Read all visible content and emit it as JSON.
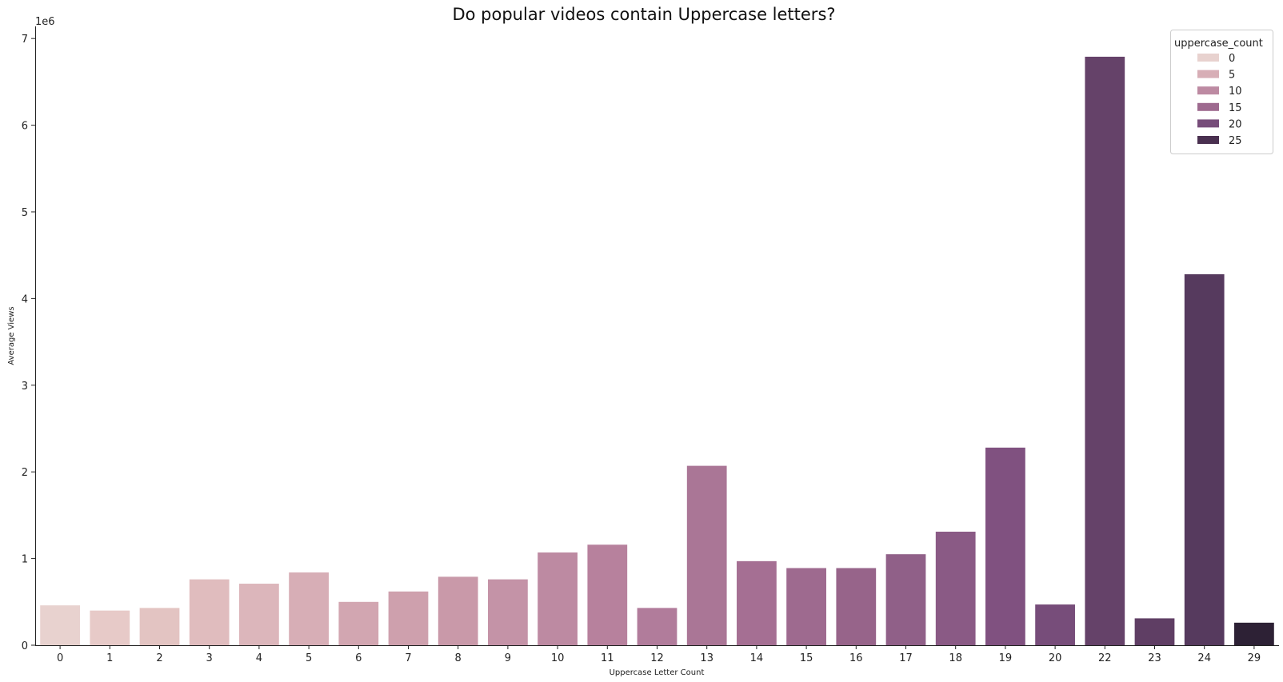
{
  "chart_data": {
    "type": "bar",
    "title": "Do popular videos contain Uppercase letters?",
    "xlabel": "Uppercase Letter Count",
    "ylabel": "Average Views",
    "y_offset_label": "1e6",
    "ylim": [
      0,
      7.14
    ],
    "yticks": [
      "0",
      "1",
      "2",
      "3",
      "4",
      "5",
      "6",
      "7"
    ],
    "ytick_values": [
      0,
      1,
      2,
      3,
      4,
      5,
      6,
      7
    ],
    "categories": [
      "0",
      "1",
      "2",
      "3",
      "4",
      "5",
      "6",
      "7",
      "8",
      "9",
      "10",
      "11",
      "12",
      "13",
      "14",
      "15",
      "16",
      "17",
      "18",
      "19",
      "20",
      "22",
      "23",
      "24",
      "29"
    ],
    "values": [
      0.46,
      0.4,
      0.43,
      0.76,
      0.71,
      0.84,
      0.5,
      0.62,
      0.79,
      0.76,
      1.07,
      1.16,
      0.43,
      2.07,
      0.97,
      0.89,
      0.89,
      1.05,
      1.31,
      2.28,
      0.47,
      6.79,
      0.31,
      4.28,
      0.26
    ],
    "colors": [
      "#e8d2cf",
      "#e7cac8",
      "#e3c4c2",
      "#e0bcbe",
      "#dcb6bb",
      "#d7aeb6",
      "#d2a6b1",
      "#cea0ad",
      "#c999a9",
      "#c493a7",
      "#bd8aa2",
      "#b7819d",
      "#b17c9b",
      "#aa7696",
      "#a56f93",
      "#9e6a8f",
      "#97648a",
      "#906088",
      "#8a5a85",
      "#805180",
      "#774d7a",
      "#654269",
      "#5f3e64",
      "#563a5e",
      "#2d2135"
    ],
    "grid": false,
    "legend": {
      "title": "uppercase_count",
      "position": "top-right",
      "entries": [
        {
          "label": "0",
          "color": "#e8d2cf"
        },
        {
          "label": "5",
          "color": "#d7aeb6"
        },
        {
          "label": "10",
          "color": "#bd8aa2"
        },
        {
          "label": "15",
          "color": "#9e6a8f"
        },
        {
          "label": "20",
          "color": "#774d7a"
        },
        {
          "label": "25",
          "color": "#4a3050"
        }
      ]
    }
  }
}
